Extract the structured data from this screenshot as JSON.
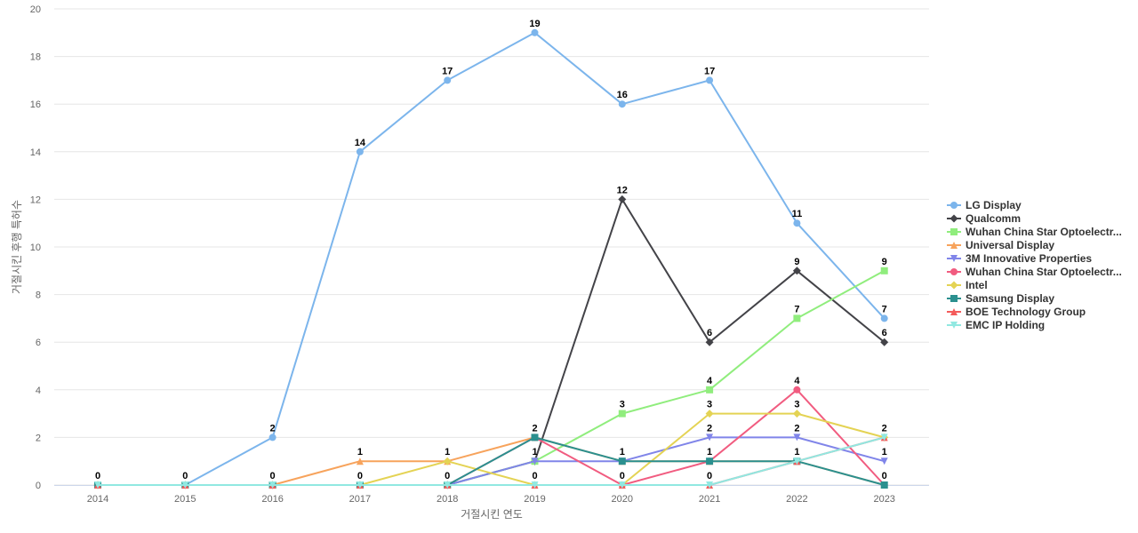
{
  "chart_data": {
    "type": "line",
    "title": "",
    "xlabel": "거절시킨 연도",
    "ylabel": "거절시킨 후행 특허수",
    "x": [
      "2014",
      "2015",
      "2016",
      "2017",
      "2018",
      "2019",
      "2020",
      "2021",
      "2022",
      "2023"
    ],
    "ylim": [
      0,
      20
    ],
    "yticks": [
      0,
      2,
      4,
      6,
      8,
      10,
      12,
      14,
      16,
      18,
      20
    ],
    "grid": true,
    "legend_position": "right",
    "series": [
      {
        "name": "LG Display",
        "color": "#7cb5ec",
        "marker": "circle",
        "values": [
          0,
          0,
          2,
          14,
          17,
          19,
          16,
          17,
          11,
          7
        ],
        "labels": true
      },
      {
        "name": "Qualcomm",
        "color": "#434348",
        "marker": "diamond",
        "values": [
          0,
          0,
          0,
          0,
          0,
          1,
          12,
          6,
          9,
          6
        ],
        "labels": true
      },
      {
        "name": "Wuhan China Star Optoelectr...",
        "color": "#90ed7d",
        "marker": "square",
        "values": [
          0,
          0,
          0,
          0,
          0,
          1,
          3,
          4,
          7,
          9
        ],
        "labels": true
      },
      {
        "name": "Universal Display",
        "color": "#f7a35c",
        "marker": "triangle",
        "values": [
          0,
          0,
          0,
          1,
          1,
          2,
          1,
          1,
          1,
          0
        ],
        "labels": false
      },
      {
        "name": "3M Innovative Properties",
        "color": "#8085e9",
        "marker": "triangle-down",
        "values": [
          0,
          0,
          0,
          0,
          0,
          1,
          1,
          2,
          2,
          1
        ],
        "labels": true
      },
      {
        "name": "Wuhan China Star Optoelectr...",
        "color": "#f15c80",
        "marker": "circle",
        "values": [
          0,
          0,
          0,
          0,
          0,
          2,
          0,
          1,
          4,
          0
        ],
        "labels": true
      },
      {
        "name": "Intel",
        "color": "#e4d354",
        "marker": "diamond",
        "values": [
          0,
          0,
          0,
          0,
          1,
          0,
          0,
          3,
          3,
          2
        ],
        "labels": true
      },
      {
        "name": "Samsung Display",
        "color": "#2b908f",
        "marker": "square",
        "values": [
          0,
          0,
          0,
          0,
          0,
          2,
          1,
          1,
          1,
          0
        ],
        "labels": false
      },
      {
        "name": "BOE Technology Group",
        "color": "#f45b5b",
        "marker": "triangle",
        "values": [
          0,
          0,
          0,
          0,
          0,
          0,
          0,
          0,
          1,
          2
        ],
        "labels": false
      },
      {
        "name": "EMC IP Holding",
        "color": "#91e8e1",
        "marker": "triangle-down",
        "values": [
          0,
          0,
          0,
          0,
          0,
          0,
          0,
          0,
          1,
          2
        ],
        "labels": false
      }
    ],
    "data_labels": [
      {
        "x": "2014",
        "text": "0",
        "y": 0
      },
      {
        "x": "2015",
        "text": "0",
        "y": 0
      },
      {
        "x": "2016",
        "text": "2",
        "y": 2
      },
      {
        "x": "2016",
        "text": "0",
        "y": 0
      },
      {
        "x": "2017",
        "text": "14",
        "y": 14
      },
      {
        "x": "2017",
        "text": "1",
        "y": 1
      },
      {
        "x": "2017",
        "text": "0",
        "y": 0
      },
      {
        "x": "2018",
        "text": "17",
        "y": 17
      },
      {
        "x": "2018",
        "text": "1",
        "y": 1
      },
      {
        "x": "2018",
        "text": "0",
        "y": 0
      },
      {
        "x": "2019",
        "text": "19",
        "y": 19
      },
      {
        "x": "2019",
        "text": "2",
        "y": 2
      },
      {
        "x": "2019",
        "text": "1",
        "y": 1
      },
      {
        "x": "2019",
        "text": "0",
        "y": 0
      },
      {
        "x": "2020",
        "text": "16",
        "y": 16
      },
      {
        "x": "2020",
        "text": "12",
        "y": 12
      },
      {
        "x": "2020",
        "text": "3",
        "y": 3
      },
      {
        "x": "2020",
        "text": "1",
        "y": 1
      },
      {
        "x": "2020",
        "text": "0",
        "y": 0
      },
      {
        "x": "2021",
        "text": "17",
        "y": 17
      },
      {
        "x": "2021",
        "text": "6",
        "y": 6
      },
      {
        "x": "2021",
        "text": "4",
        "y": 4
      },
      {
        "x": "2021",
        "text": "3",
        "y": 3
      },
      {
        "x": "2021",
        "text": "2",
        "y": 2
      },
      {
        "x": "2021",
        "text": "1",
        "y": 1
      },
      {
        "x": "2021",
        "text": "0",
        "y": 0
      },
      {
        "x": "2022",
        "text": "11",
        "y": 11
      },
      {
        "x": "2022",
        "text": "9",
        "y": 9
      },
      {
        "x": "2022",
        "text": "7",
        "y": 7
      },
      {
        "x": "2022",
        "text": "4",
        "y": 4
      },
      {
        "x": "2022",
        "text": "3",
        "y": 3
      },
      {
        "x": "2022",
        "text": "2",
        "y": 2
      },
      {
        "x": "2022",
        "text": "1",
        "y": 1
      },
      {
        "x": "2023",
        "text": "9",
        "y": 9
      },
      {
        "x": "2023",
        "text": "7",
        "y": 7
      },
      {
        "x": "2023",
        "text": "6",
        "y": 6
      },
      {
        "x": "2023",
        "text": "2",
        "y": 2
      },
      {
        "x": "2023",
        "text": "1",
        "y": 1
      },
      {
        "x": "2023",
        "text": "0",
        "y": 0
      }
    ]
  }
}
